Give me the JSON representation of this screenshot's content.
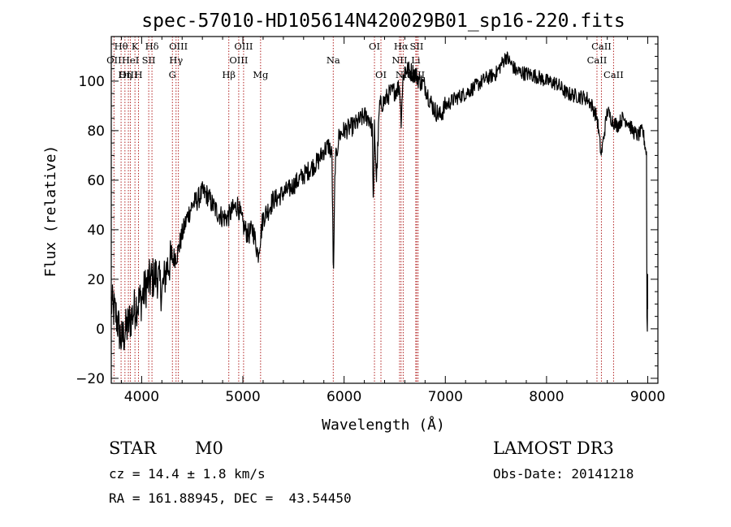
{
  "chart_data": {
    "type": "line",
    "title": "spec-57010-HD105614N420029B01_sp16-220.fits",
    "xlabel": "Wavelength (Å)",
    "ylabel": "Flux (relative)",
    "xlim": [
      3700,
      9100
    ],
    "ylim": [
      -22,
      118
    ],
    "xticks": [
      4000,
      5000,
      6000,
      7000,
      8000,
      9000
    ],
    "yticks": [
      -20,
      0,
      20,
      40,
      60,
      80,
      100
    ],
    "xtick_labels": [
      "4000",
      "5000",
      "6000",
      "7000",
      "8000",
      "9000"
    ],
    "ytick_labels": [
      "−20",
      "0",
      "20",
      "40",
      "60",
      "80",
      "100"
    ],
    "line_color": "#000000",
    "marker_color": "#b22222",
    "spectrum": {
      "name": "flux",
      "x": [
        3700,
        3750,
        3800,
        3850,
        3900,
        3950,
        4000,
        4050,
        4100,
        4150,
        4200,
        4250,
        4300,
        4350,
        4400,
        4450,
        4500,
        4550,
        4600,
        4650,
        4700,
        4750,
        4800,
        4850,
        4900,
        4950,
        5000,
        5050,
        5100,
        5150,
        5200,
        5250,
        5300,
        5350,
        5400,
        5450,
        5500,
        5550,
        5600,
        5650,
        5700,
        5750,
        5800,
        5850,
        5880,
        5895,
        5910,
        5950,
        6000,
        6050,
        6100,
        6150,
        6200,
        6250,
        6280,
        6290,
        6300,
        6320,
        6350,
        6400,
        6450,
        6500,
        6550,
        6563,
        6580,
        6600,
        6650,
        6700,
        6750,
        6800,
        6850,
        6900,
        6950,
        7000,
        7100,
        7200,
        7300,
        7400,
        7500,
        7600,
        7700,
        7800,
        7900,
        8000,
        8100,
        8200,
        8300,
        8400,
        8450,
        8500,
        8540,
        8600,
        8650,
        8700,
        8750,
        8800,
        8850,
        8900,
        8950,
        8990
      ],
      "y": [
        10,
        5,
        -5,
        0,
        5,
        10,
        12,
        18,
        20,
        22,
        15,
        25,
        28,
        30,
        38,
        45,
        50,
        52,
        55,
        54,
        50,
        47,
        45,
        45,
        48,
        50,
        42,
        38,
        40,
        30,
        45,
        48,
        52,
        53,
        55,
        56,
        58,
        60,
        62,
        64,
        66,
        68,
        72,
        74,
        70,
        18,
        66,
        78,
        80,
        81,
        82,
        84,
        86,
        85,
        80,
        45,
        82,
        60,
        90,
        92,
        95,
        96,
        98,
        84,
        100,
        105,
        104,
        103,
        100,
        98,
        92,
        88,
        86,
        90,
        93,
        95,
        98,
        101,
        103,
        110,
        104,
        103,
        102,
        100,
        99,
        95,
        94,
        93,
        90,
        85,
        70,
        88,
        84,
        82,
        85,
        84,
        80,
        78,
        80,
        70
      ]
    },
    "spectral_lines": [
      {
        "label": "Hθ",
        "x": 3797,
        "row": 1
      },
      {
        "label": "OII",
        "x": 3727,
        "row": 2
      },
      {
        "label": "OIII",
        "x": 3869,
        "row": 3
      },
      {
        "label": "K",
        "x": 3934,
        "row": 1
      },
      {
        "label": "HeI",
        "x": 3889,
        "row": 2
      },
      {
        "label": "Hη",
        "x": 3835,
        "row": 3
      },
      {
        "label": "Hδ",
        "x": 4102,
        "row": 1
      },
      {
        "label": "SII",
        "x": 4070,
        "row": 2
      },
      {
        "label": "H",
        "x": 3969,
        "row": 3
      },
      {
        "label": "OIII",
        "x": 4363,
        "row": 1
      },
      {
        "label": "Hγ",
        "x": 4340,
        "row": 2
      },
      {
        "label": "G",
        "x": 4304,
        "row": 3
      },
      {
        "label": "OIII",
        "x": 5007,
        "row": 1
      },
      {
        "label": "OIII",
        "x": 4959,
        "row": 2
      },
      {
        "label": "Hβ",
        "x": 4861,
        "row": 3
      },
      {
        "label": "Mg",
        "x": 5175,
        "row": 3
      },
      {
        "label": "Na",
        "x": 5893,
        "row": 2
      },
      {
        "label": "OI",
        "x": 6300,
        "row": 1
      },
      {
        "label": "OI",
        "x": 6364,
        "row": 3
      },
      {
        "label": "Hα",
        "x": 6563,
        "row": 1
      },
      {
        "label": "NII",
        "x": 6548,
        "row": 2
      },
      {
        "label": "NII",
        "x": 6584,
        "row": 3
      },
      {
        "label": "SII",
        "x": 6717,
        "row": 1
      },
      {
        "label": "Li",
        "x": 6708,
        "row": 2
      },
      {
        "label": "SII",
        "x": 6731,
        "row": 3
      },
      {
        "label": "CaII",
        "x": 8542,
        "row": 1
      },
      {
        "label": "CaII",
        "x": 8498,
        "row": 2
      },
      {
        "label": "CaII",
        "x": 8662,
        "row": 3
      }
    ]
  },
  "info": {
    "object_class": "STAR",
    "subclass": "M0",
    "survey": "LAMOST DR3",
    "cz": "cz = 14.4 ± 1.8 km/s",
    "obs_date": "Obs-Date: 20141218",
    "coords": "RA = 161.88945, DEC =  43.54450"
  }
}
